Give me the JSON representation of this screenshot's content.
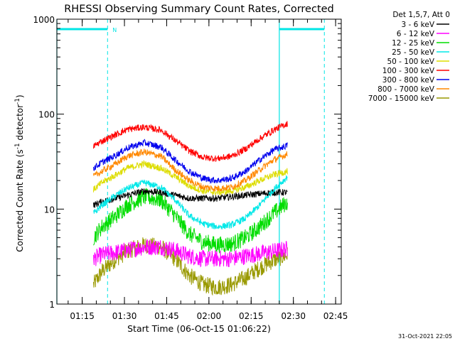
{
  "chart_data": {
    "type": "line",
    "title": "RHESSI Observing Summary Count Rates, Corrected",
    "xlabel": "Start Time (06-Oct-15 01:06:22)",
    "ylabel": "Corrected Count Rate (s⁻¹ detector⁻¹)",
    "y_scale": "log",
    "ylim": [
      1,
      1000
    ],
    "y_ticks": [
      {
        "value": 1,
        "label": "1"
      },
      {
        "value": 10,
        "label": "10"
      },
      {
        "value": 100,
        "label": "100"
      },
      {
        "value": 1000,
        "label": "1000"
      }
    ],
    "xlim": [
      "01:06:22",
      "02:47:00"
    ],
    "x_ticks": [
      "01:15",
      "01:30",
      "01:45",
      "02:00",
      "02:15",
      "02:30",
      "02:45"
    ],
    "grid": false,
    "legend_title": "Det 1,5,7, Att 0",
    "legend_position": "right",
    "footer": "31-Oct-2021 22:05",
    "night_marker": "N",
    "flags": {
      "spacecraft_night": [
        [
          "01:06",
          "01:24"
        ],
        [
          "02:25",
          "02:41"
        ]
      ],
      "boundaries_solid": [
        "01:06",
        "02:25"
      ],
      "boundaries_dashed": [
        "01:24",
        "02:41"
      ]
    },
    "series": [
      {
        "name": "3 - 6 keV",
        "color": "#000000",
        "points": [
          [
            "01:19",
            11
          ],
          [
            "01:22",
            12
          ],
          [
            "01:27",
            13
          ],
          [
            "01:31",
            14
          ],
          [
            "01:37",
            15.5
          ],
          [
            "01:43",
            15
          ],
          [
            "01:48",
            14
          ],
          [
            "01:53",
            13
          ],
          [
            "01:58",
            13
          ],
          [
            "02:03",
            13
          ],
          [
            "02:08",
            13.5
          ],
          [
            "02:13",
            14
          ],
          [
            "02:18",
            14.5
          ],
          [
            "02:23",
            15
          ],
          [
            "02:28",
            15
          ]
        ]
      },
      {
        "name": "6 - 12 keV",
        "color": "#ff00ff",
        "points": [
          [
            "01:19",
            3
          ],
          [
            "01:22",
            3.3
          ],
          [
            "01:27",
            3.5
          ],
          [
            "01:31",
            3.7
          ],
          [
            "01:37",
            4
          ],
          [
            "01:43",
            4
          ],
          [
            "01:48",
            3.7
          ],
          [
            "01:53",
            3.2
          ],
          [
            "01:58",
            3
          ],
          [
            "02:03",
            3
          ],
          [
            "02:08",
            3
          ],
          [
            "02:13",
            3.2
          ],
          [
            "02:18",
            3.4
          ],
          [
            "02:23",
            3.6
          ],
          [
            "02:28",
            3.8
          ]
        ]
      },
      {
        "name": "12 - 25 keV",
        "color": "#00dd00",
        "points": [
          [
            "01:19",
            5
          ],
          [
            "01:22",
            6.5
          ],
          [
            "01:27",
            8.5
          ],
          [
            "01:31",
            11
          ],
          [
            "01:37",
            13.5
          ],
          [
            "01:43",
            12.5
          ],
          [
            "01:48",
            8.5
          ],
          [
            "01:53",
            5.5
          ],
          [
            "01:58",
            4.5
          ],
          [
            "02:03",
            4.2
          ],
          [
            "02:08",
            4.3
          ],
          [
            "02:13",
            5
          ],
          [
            "02:18",
            6.5
          ],
          [
            "02:23",
            9
          ],
          [
            "02:28",
            12
          ]
        ]
      },
      {
        "name": "25 - 50 keV",
        "color": "#00e8e8",
        "points": [
          [
            "01:19",
            9
          ],
          [
            "01:22",
            11
          ],
          [
            "01:27",
            14
          ],
          [
            "01:31",
            16.5
          ],
          [
            "01:37",
            19
          ],
          [
            "01:43",
            17
          ],
          [
            "01:48",
            12.5
          ],
          [
            "01:53",
            8.5
          ],
          [
            "01:58",
            7
          ],
          [
            "02:03",
            6.5
          ],
          [
            "02:08",
            6.8
          ],
          [
            "02:13",
            8
          ],
          [
            "02:18",
            11
          ],
          [
            "02:23",
            16
          ],
          [
            "02:28",
            22
          ]
        ]
      },
      {
        "name": "50 - 100 keV",
        "color": "#dddd00",
        "points": [
          [
            "01:19",
            16
          ],
          [
            "01:22",
            19
          ],
          [
            "01:27",
            23
          ],
          [
            "01:31",
            27
          ],
          [
            "01:37",
            30
          ],
          [
            "01:43",
            27
          ],
          [
            "01:48",
            22
          ],
          [
            "01:53",
            17.5
          ],
          [
            "01:58",
            15.5
          ],
          [
            "02:03",
            15
          ],
          [
            "02:08",
            15.5
          ],
          [
            "02:13",
            17
          ],
          [
            "02:18",
            20
          ],
          [
            "02:23",
            23
          ],
          [
            "02:28",
            25
          ]
        ]
      },
      {
        "name": "100 - 300 keV",
        "color": "#ff0000",
        "points": [
          [
            "01:19",
            46
          ],
          [
            "01:22",
            52
          ],
          [
            "01:27",
            61
          ],
          [
            "01:31",
            69
          ],
          [
            "01:37",
            73
          ],
          [
            "01:43",
            68
          ],
          [
            "01:48",
            53
          ],
          [
            "01:53",
            41
          ],
          [
            "01:58",
            35
          ],
          [
            "02:03",
            34
          ],
          [
            "02:08",
            36
          ],
          [
            "02:13",
            43
          ],
          [
            "02:18",
            55
          ],
          [
            "02:23",
            68
          ],
          [
            "02:28",
            80
          ]
        ]
      },
      {
        "name": "300 - 800 keV",
        "color": "#0000ee",
        "points": [
          [
            "01:19",
            27
          ],
          [
            "01:22",
            31
          ],
          [
            "01:27",
            37
          ],
          [
            "01:31",
            44
          ],
          [
            "01:37",
            50
          ],
          [
            "01:43",
            45
          ],
          [
            "01:48",
            33
          ],
          [
            "01:53",
            25
          ],
          [
            "01:58",
            21
          ],
          [
            "02:03",
            20
          ],
          [
            "02:08",
            21
          ],
          [
            "02:13",
            25
          ],
          [
            "02:18",
            33
          ],
          [
            "02:23",
            42
          ],
          [
            "02:28",
            47
          ]
        ]
      },
      {
        "name": "800 - 7000 keV",
        "color": "#ff8800",
        "points": [
          [
            "01:19",
            22
          ],
          [
            "01:22",
            25
          ],
          [
            "01:27",
            30
          ],
          [
            "01:31",
            36
          ],
          [
            "01:37",
            40
          ],
          [
            "01:43",
            36
          ],
          [
            "01:48",
            26
          ],
          [
            "01:53",
            20
          ],
          [
            "01:58",
            17
          ],
          [
            "02:03",
            16.5
          ],
          [
            "02:08",
            17
          ],
          [
            "02:13",
            20
          ],
          [
            "02:18",
            26
          ],
          [
            "02:23",
            33
          ],
          [
            "02:28",
            38
          ]
        ]
      },
      {
        "name": "7000 - 15000 keV",
        "color": "#999900",
        "points": [
          [
            "01:19",
            1.6
          ],
          [
            "01:22",
            2.2
          ],
          [
            "01:27",
            3
          ],
          [
            "01:31",
            3.6
          ],
          [
            "01:37",
            4.2
          ],
          [
            "01:43",
            4
          ],
          [
            "01:48",
            3
          ],
          [
            "01:53",
            2
          ],
          [
            "01:58",
            1.6
          ],
          [
            "02:03",
            1.5
          ],
          [
            "02:08",
            1.6
          ],
          [
            "02:13",
            1.9
          ],
          [
            "02:18",
            2.4
          ],
          [
            "02:23",
            2.9
          ],
          [
            "02:28",
            3.3
          ]
        ]
      }
    ]
  }
}
